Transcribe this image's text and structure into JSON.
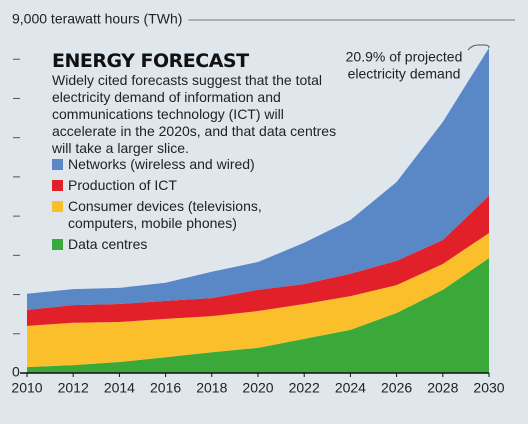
{
  "chart_data": {
    "type": "stacked-area",
    "title": "ENERGY FORECAST",
    "subtitle": "Widely cited forecasts suggest that the total electricity demand of information and communications technology (ICT) will accelerate in the 2020s, and that data centres will take a larger slice.",
    "annotation": [
      "20.9% of projected",
      "electricity demand"
    ],
    "x": [
      2010,
      2012,
      2014,
      2016,
      2018,
      2020,
      2022,
      2024,
      2026,
      2028,
      2030
    ],
    "xlim": [
      2010,
      2030
    ],
    "xticks": [
      2010,
      2012,
      2014,
      2016,
      2018,
      2020,
      2022,
      2024,
      2026,
      2028,
      2030
    ],
    "ylim": [
      0,
      9000
    ],
    "yticks": [
      0,
      {
        "value": 9000,
        "label": "9,000 terawatt hours (TWh)"
      }
    ],
    "yminorticks": [
      1000,
      2000,
      3000,
      4000,
      5000,
      6000,
      7000,
      8000
    ],
    "series": [
      {
        "name": "Networks (wireless and wired)",
        "color": "#5a87c5",
        "values": [
          410,
          410,
          410,
          460,
          670,
          710,
          1050,
          1370,
          2010,
          3010,
          3770
        ]
      },
      {
        "name": "Production of ICT",
        "color": "#e2202a",
        "values": [
          410,
          450,
          460,
          460,
          460,
          540,
          510,
          570,
          620,
          610,
          950
        ]
      },
      {
        "name": "Consumer devices (televisions, computers, mobile phones)",
        "color": "#fbbf2c",
        "values": [
          1050,
          1080,
          1020,
          980,
          920,
          940,
          890,
          860,
          710,
          660,
          640
        ]
      },
      {
        "name": "Data centres",
        "color": "#3aa93a",
        "values": [
          150,
          200,
          280,
          400,
          530,
          640,
          870,
          1100,
          1530,
          2120,
          2930
        ]
      }
    ]
  }
}
